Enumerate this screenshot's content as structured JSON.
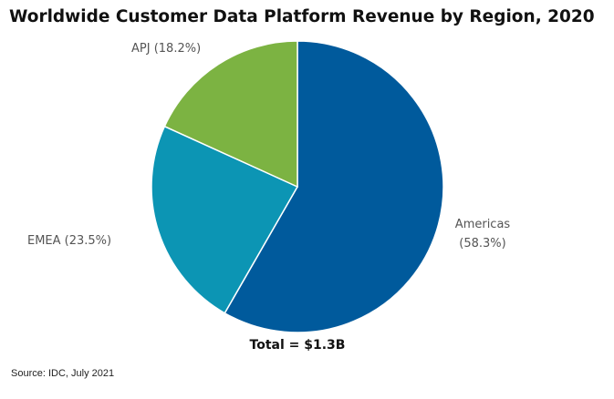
{
  "chart_data": {
    "type": "pie",
    "title": "Worldwide Customer Data Platform Revenue by Region, 2020",
    "slices": [
      {
        "name": "Americas",
        "value": 58.3,
        "label_line1": "Americas",
        "label_line2": "(58.3%)",
        "color": "#005a9c"
      },
      {
        "name": "EMEA",
        "value": 23.5,
        "label_line1": "EMEA (23.5%)",
        "label_line2": "",
        "color": "#0c95b4"
      },
      {
        "name": "APJ",
        "value": 18.2,
        "label_line1": "APJ (18.2%)",
        "label_line2": "",
        "color": "#7cb342"
      }
    ],
    "start": "top",
    "direction": "clockwise",
    "legend": "none",
    "total_label": "Total = $1.3B",
    "source": "Source: IDC, July 2021"
  }
}
